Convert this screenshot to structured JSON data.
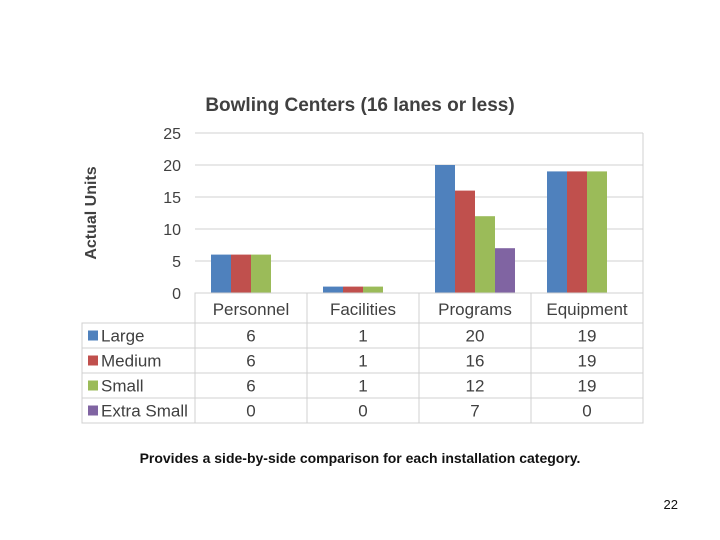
{
  "slide": {
    "caption": "Provides a side-by-side comparison for each installation category.",
    "page_number": "22"
  },
  "chart_data": {
    "type": "bar",
    "title": "Bowling Centers (16 lanes or less)",
    "xlabel": "",
    "ylabel": "Actual Units",
    "ylim": [
      0,
      25
    ],
    "yticks": [
      0,
      5,
      10,
      15,
      20,
      25
    ],
    "categories": [
      "Personnel",
      "Facilities",
      "Programs",
      "Equipment"
    ],
    "series": [
      {
        "name": "Large",
        "color": "#4f81bd",
        "values": [
          6,
          1,
          20,
          19
        ]
      },
      {
        "name": "Medium",
        "color": "#c0504d",
        "values": [
          6,
          1,
          16,
          19
        ]
      },
      {
        "name": "Small",
        "color": "#9bbb59",
        "values": [
          6,
          1,
          12,
          19
        ]
      },
      {
        "name": "Extra Small",
        "color": "#8064a2",
        "values": [
          0,
          0,
          7,
          0
        ]
      }
    ],
    "grid": true,
    "legend": "data-table"
  }
}
